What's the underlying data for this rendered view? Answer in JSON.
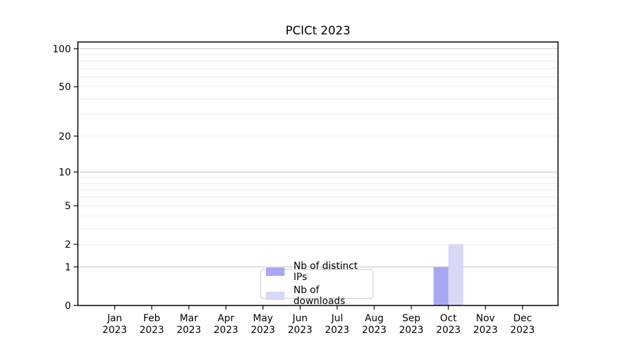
{
  "chart_data": {
    "type": "bar",
    "title": "PCICt 2023",
    "categories": [
      {
        "month": "Jan",
        "year": "2023"
      },
      {
        "month": "Feb",
        "year": "2023"
      },
      {
        "month": "Mar",
        "year": "2023"
      },
      {
        "month": "Apr",
        "year": "2023"
      },
      {
        "month": "May",
        "year": "2023"
      },
      {
        "month": "Jun",
        "year": "2023"
      },
      {
        "month": "Jul",
        "year": "2023"
      },
      {
        "month": "Aug",
        "year": "2023"
      },
      {
        "month": "Sep",
        "year": "2023"
      },
      {
        "month": "Oct",
        "year": "2023"
      },
      {
        "month": "Nov",
        "year": "2023"
      },
      {
        "month": "Dec",
        "year": "2023"
      }
    ],
    "series": [
      {
        "name": "Nb of distinct IPs",
        "color": "#a8a8f2",
        "values": [
          0,
          0,
          0,
          0,
          0,
          0,
          0,
          0,
          0,
          1,
          0,
          0
        ]
      },
      {
        "name": "Nb of downloads",
        "color": "#d8d8f7",
        "values": [
          0,
          0,
          0,
          0,
          0,
          0,
          0,
          0,
          0,
          2,
          0,
          0
        ]
      }
    ],
    "xlabel": "",
    "ylabel": "",
    "yscale": "log1p",
    "ylim": [
      0,
      113
    ],
    "yticks": [
      0,
      1,
      2,
      5,
      10,
      20,
      50,
      100
    ],
    "grid": {
      "on": true,
      "major": [
        1,
        10,
        100
      ],
      "minor": [
        2,
        3,
        4,
        5,
        6,
        7,
        8,
        9,
        20,
        30,
        40,
        50,
        60,
        70,
        80,
        90
      ],
      "major_color": "#c2c2c2",
      "minor_color": "#ececec"
    },
    "legend": {
      "position": "lower center",
      "entries": [
        "Nb of distinct IPs",
        "Nb of downloads"
      ]
    },
    "axis_color": "#000000",
    "background": "#ffffff"
  }
}
